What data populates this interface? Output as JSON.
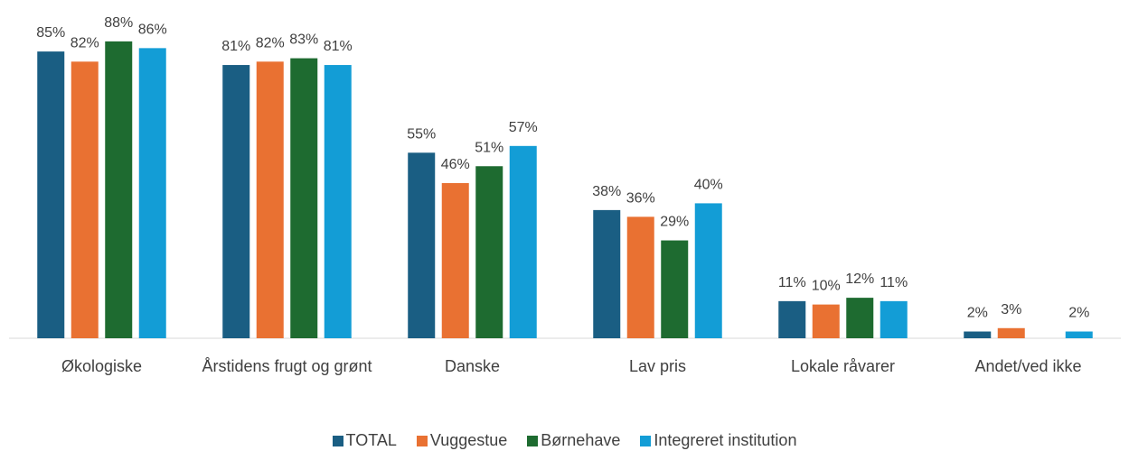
{
  "chart_data": {
    "type": "bar",
    "categories": [
      "Økologiske",
      "Årstidens frugt og grønt",
      "Danske",
      "Lav pris",
      "Lokale råvarer",
      "Andet/ved ikke"
    ],
    "series": [
      {
        "name": "TOTAL",
        "color": "#1a5e83",
        "values": [
          85,
          81,
          55,
          38,
          11,
          2
        ],
        "value_labels": [
          "85%",
          "81%",
          "55%",
          "38%",
          "11%",
          "2%"
        ]
      },
      {
        "name": "Vuggestue",
        "color": "#e97132",
        "values": [
          82,
          82,
          46,
          36,
          10,
          3
        ],
        "value_labels": [
          "82%",
          "82%",
          "46%",
          "36%",
          "10%",
          "3%"
        ]
      },
      {
        "name": "Børnehave",
        "color": "#1e6b30",
        "values": [
          88,
          83,
          51,
          29,
          12,
          null
        ],
        "value_labels": [
          "88%",
          "83%",
          "51%",
          "29%",
          "12%",
          null
        ]
      },
      {
        "name": "Integreret institution",
        "color": "#139dd6",
        "values": [
          86,
          81,
          57,
          40,
          11,
          2
        ],
        "value_labels": [
          "86%",
          "81%",
          "57%",
          "40%",
          "11%",
          "2%"
        ]
      }
    ],
    "legend": "bottom"
  }
}
